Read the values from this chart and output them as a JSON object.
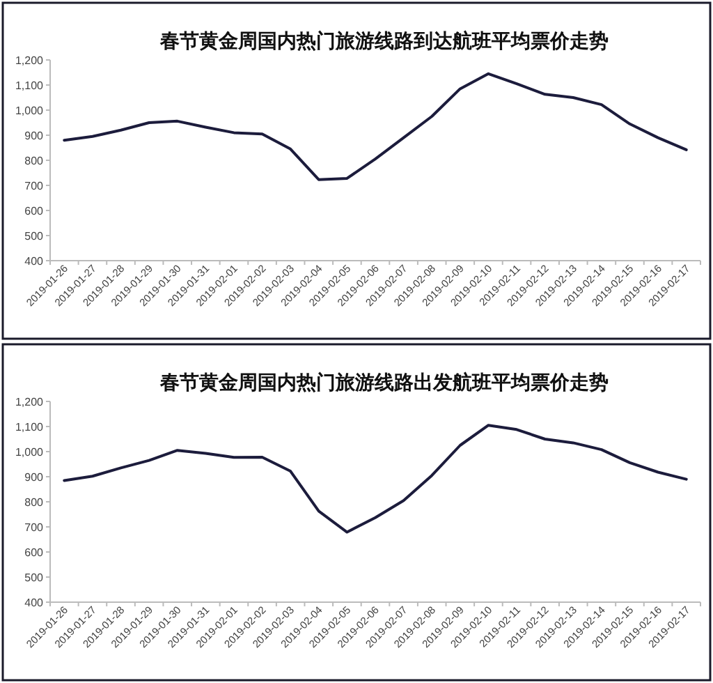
{
  "chart_data": [
    {
      "type": "line",
      "title": "春节黄金周国内热门旅游线路到达航班平均票价走势",
      "categories": [
        "2019-01-26",
        "2019-01-27",
        "2019-01-28",
        "2019-01-29",
        "2019-01-30",
        "2019-01-31",
        "2019-02-01",
        "2019-02-02",
        "2019-02-03",
        "2019-02-04",
        "2019-02-05",
        "2019-02-06",
        "2019-02-07",
        "2019-02-08",
        "2019-02-09",
        "2019-02-10",
        "2019-02-11",
        "2019-02-12",
        "2019-02-13",
        "2019-02-14",
        "2019-02-15",
        "2019-02-16",
        "2019-02-17"
      ],
      "series": [
        {
          "color": "#1c1c3c",
          "values": [
            880,
            895,
            920,
            950,
            956,
            932,
            910,
            905,
            845,
            723,
            728,
            805,
            890,
            975,
            1085,
            1145,
            1105,
            1063,
            1050,
            1022,
            945,
            890,
            842
          ]
        }
      ],
      "ylim": [
        400,
        1200
      ],
      "yticks": [
        {
          "value": 400,
          "label": "400"
        },
        {
          "value": 500,
          "label": "500"
        },
        {
          "value": 600,
          "label": "600"
        },
        {
          "value": 700,
          "label": "700"
        },
        {
          "value": 800,
          "label": "800"
        },
        {
          "value": 900,
          "label": "900"
        },
        {
          "value": 1000,
          "label": "1,000"
        },
        {
          "value": 1100,
          "label": "1,100"
        },
        {
          "value": 1200,
          "label": "1,200"
        }
      ],
      "grid": false,
      "marker": "none",
      "line_style": "solid"
    },
    {
      "type": "line",
      "title": "春节黄金周国内热门旅游线路出发航班平均票价走势",
      "categories": [
        "2019-01-26",
        "2019-01-27",
        "2019-01-28",
        "2019-01-29",
        "2019-01-30",
        "2019-01-31",
        "2019-02-01",
        "2019-02-02",
        "2019-02-03",
        "2019-02-04",
        "2019-02-05",
        "2019-02-06",
        "2019-02-07",
        "2019-02-08",
        "2019-02-09",
        "2019-02-10",
        "2019-02-11",
        "2019-02-12",
        "2019-02-13",
        "2019-02-14",
        "2019-02-15",
        "2019-02-16",
        "2019-02-17"
      ],
      "series": [
        {
          "color": "#1c1c3c",
          "values": [
            885,
            902,
            935,
            965,
            1005,
            993,
            977,
            978,
            922,
            763,
            679,
            737,
            805,
            905,
            1025,
            1105,
            1088,
            1050,
            1035,
            1008,
            956,
            918,
            890
          ]
        }
      ],
      "ylim": [
        400,
        1200
      ],
      "yticks": [
        {
          "value": 400,
          "label": "400"
        },
        {
          "value": 500,
          "label": "500"
        },
        {
          "value": 600,
          "label": "600"
        },
        {
          "value": 700,
          "label": "700"
        },
        {
          "value": 800,
          "label": "800"
        },
        {
          "value": 900,
          "label": "900"
        },
        {
          "value": 1000,
          "label": "1,000"
        },
        {
          "value": 1100,
          "label": "1,100"
        },
        {
          "value": 1200,
          "label": "1,200"
        }
      ],
      "grid": false,
      "marker": "none",
      "line_style": "solid"
    }
  ]
}
